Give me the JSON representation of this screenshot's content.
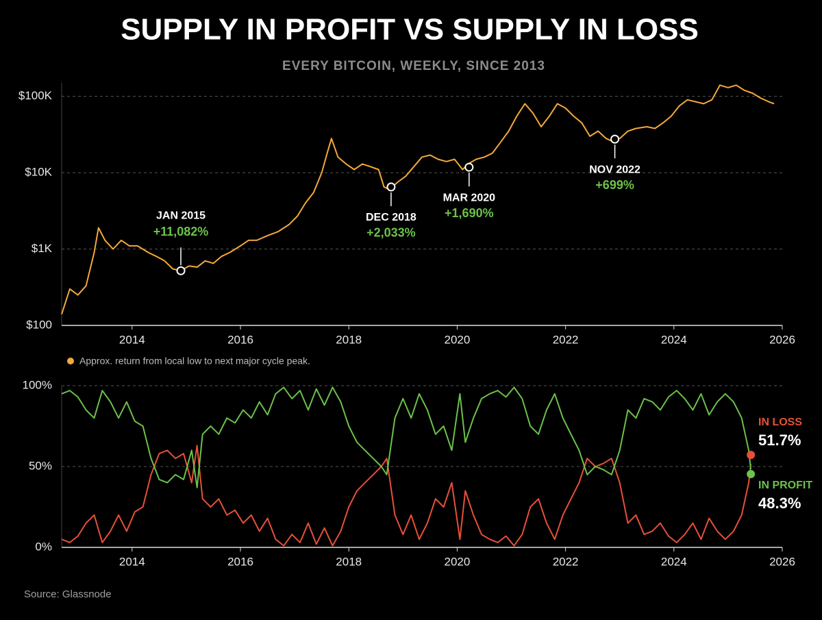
{
  "title": "SUPPLY IN PROFIT VS SUPPLY IN LOSS",
  "subtitle": "EVERY BITCOIN, WEEKLY, SINCE 2013",
  "source": "Source: Glassnode",
  "chart_data": [
    {
      "type": "line",
      "log_scale": true,
      "grid": true,
      "x": [
        2012.7,
        2012.85,
        2013.0,
        2013.15,
        2013.3,
        2013.38,
        2013.5,
        2013.65,
        2013.8,
        2013.95,
        2014.1,
        2014.3,
        2014.45,
        2014.6,
        2014.75,
        2014.9,
        2015.05,
        2015.2,
        2015.35,
        2015.5,
        2015.65,
        2015.8,
        2016.0,
        2016.15,
        2016.3,
        2016.5,
        2016.7,
        2016.9,
        2017.05,
        2017.2,
        2017.35,
        2017.5,
        2017.6,
        2017.68,
        2017.8,
        2017.95,
        2018.1,
        2018.25,
        2018.4,
        2018.55,
        2018.65,
        2018.75,
        2018.9,
        2019.05,
        2019.2,
        2019.35,
        2019.5,
        2019.65,
        2019.8,
        2019.95,
        2020.1,
        2020.2,
        2020.35,
        2020.5,
        2020.65,
        2020.8,
        2020.95,
        2021.1,
        2021.25,
        2021.4,
        2021.55,
        2021.7,
        2021.85,
        2022.0,
        2022.15,
        2022.3,
        2022.45,
        2022.6,
        2022.75,
        2022.85,
        2023.0,
        2023.15,
        2023.3,
        2023.5,
        2023.65,
        2023.8,
        2023.95,
        2024.1,
        2024.25,
        2024.4,
        2024.55,
        2024.7,
        2024.85,
        2025.0,
        2025.15,
        2025.3,
        2025.45,
        2025.6,
        2025.75,
        2025.85
      ],
      "series": [
        {
          "color": "#f4a93b",
          "values": [
            140,
            300,
            250,
            330,
            900,
            1900,
            1300,
            1000,
            1300,
            1100,
            1100,
            900,
            800,
            700,
            550,
            520,
            600,
            580,
            700,
            650,
            800,
            900,
            1100,
            1300,
            1300,
            1500,
            1700,
            2100,
            2700,
            4000,
            5500,
            10000,
            18000,
            28000,
            16000,
            13000,
            11000,
            13000,
            12000,
            11000,
            6500,
            6000,
            7500,
            9000,
            12000,
            16000,
            17000,
            15000,
            14000,
            15000,
            11000,
            13000,
            15000,
            16000,
            18000,
            25000,
            35000,
            55000,
            80000,
            60000,
            40000,
            55000,
            80000,
            70000,
            55000,
            45000,
            30000,
            35000,
            28000,
            26000,
            28000,
            35000,
            38000,
            40000,
            38000,
            45000,
            55000,
            75000,
            90000,
            85000,
            80000,
            90000,
            140000,
            130000,
            140000,
            120000,
            110000,
            95000,
            85000,
            80000
          ]
        }
      ],
      "xlim": [
        2012.7,
        2026
      ],
      "xticks": [
        2014,
        2016,
        2018,
        2020,
        2022,
        2024,
        2026
      ],
      "ylim": [
        100,
        150000
      ],
      "yticks": [
        {
          "value": 100,
          "label": "$100"
        },
        {
          "value": 1000,
          "label": "$1K"
        },
        {
          "value": 10000,
          "label": "$10K"
        },
        {
          "value": 100000,
          "label": "$100K"
        }
      ],
      "annotations": [
        {
          "x": 2014.9,
          "y": 520,
          "label": "JAN 2015",
          "return": "+11,082%",
          "placement": "above"
        },
        {
          "x": 2018.78,
          "y": 6500,
          "label": "DEC 2018",
          "return": "+2,033%",
          "placement": "below"
        },
        {
          "x": 2020.22,
          "y": 11800,
          "label": "MAR 2020",
          "return": "+1,690%",
          "placement": "below"
        },
        {
          "x": 2022.91,
          "y": 27500,
          "label": "NOV 2022",
          "return": "+699%",
          "placement": "below"
        }
      ],
      "note": "Approx. return from local low to next major cycle peak.",
      "note_color": "#f4a93b"
    },
    {
      "type": "line",
      "grid": true,
      "x": [
        2012.7,
        2012.85,
        2013.0,
        2013.15,
        2013.3,
        2013.45,
        2013.6,
        2013.75,
        2013.9,
        2014.05,
        2014.2,
        2014.35,
        2014.5,
        2014.65,
        2014.8,
        2014.95,
        2015.1,
        2015.2,
        2015.3,
        2015.45,
        2015.6,
        2015.75,
        2015.9,
        2016.05,
        2016.2,
        2016.35,
        2016.5,
        2016.65,
        2016.8,
        2016.95,
        2017.1,
        2017.25,
        2017.4,
        2017.55,
        2017.7,
        2017.85,
        2018.0,
        2018.15,
        2018.3,
        2018.45,
        2018.6,
        2018.7,
        2018.85,
        2019.0,
        2019.15,
        2019.3,
        2019.45,
        2019.6,
        2019.75,
        2019.9,
        2020.05,
        2020.15,
        2020.3,
        2020.45,
        2020.6,
        2020.75,
        2020.9,
        2021.05,
        2021.2,
        2021.35,
        2021.5,
        2021.65,
        2021.8,
        2021.95,
        2022.1,
        2022.25,
        2022.4,
        2022.55,
        2022.7,
        2022.85,
        2023.0,
        2023.15,
        2023.3,
        2023.45,
        2023.6,
        2023.75,
        2023.9,
        2024.05,
        2024.2,
        2024.35,
        2024.5,
        2024.65,
        2024.8,
        2024.95,
        2025.1,
        2025.25,
        2025.38,
        2025.42
      ],
      "series": [
        {
          "name": "IN LOSS",
          "color": "#e8503a",
          "end_label": "51.7%",
          "values": [
            5,
            3,
            7,
            15,
            20,
            3,
            10,
            20,
            10,
            22,
            25,
            45,
            58,
            60,
            55,
            58,
            40,
            63,
            30,
            25,
            30,
            20,
            23,
            15,
            20,
            10,
            18,
            5,
            1,
            8,
            3,
            15,
            2,
            12,
            1,
            10,
            25,
            35,
            40,
            45,
            50,
            55,
            20,
            8,
            20,
            5,
            15,
            30,
            25,
            40,
            5,
            35,
            20,
            8,
            5,
            3,
            7,
            1,
            8,
            25,
            30,
            15,
            5,
            20,
            30,
            40,
            55,
            50,
            52,
            55,
            40,
            15,
            20,
            8,
            10,
            15,
            7,
            3,
            8,
            15,
            5,
            18,
            10,
            5,
            10,
            20,
            40,
            51.7
          ]
        },
        {
          "name": "IN PROFIT",
          "color": "#6cc24a",
          "end_label": "48.3%",
          "values": [
            95,
            97,
            93,
            85,
            80,
            97,
            90,
            80,
            90,
            78,
            75,
            55,
            42,
            40,
            45,
            42,
            60,
            37,
            70,
            75,
            70,
            80,
            77,
            85,
            80,
            90,
            82,
            95,
            99,
            92,
            97,
            85,
            98,
            88,
            99,
            90,
            75,
            65,
            60,
            55,
            50,
            45,
            80,
            92,
            80,
            95,
            85,
            70,
            75,
            60,
            95,
            65,
            80,
            92,
            95,
            97,
            93,
            99,
            92,
            75,
            70,
            85,
            95,
            80,
            70,
            60,
            45,
            50,
            48,
            45,
            60,
            85,
            80,
            92,
            90,
            85,
            93,
            97,
            92,
            85,
            95,
            82,
            90,
            95,
            90,
            80,
            60,
            48.3
          ]
        }
      ],
      "xlim": [
        2012.7,
        2026
      ],
      "xticks": [
        2014,
        2016,
        2018,
        2020,
        2022,
        2024,
        2026
      ],
      "ylim": [
        0,
        100
      ],
      "yticks": [
        {
          "value": 0,
          "label": "0%"
        },
        {
          "value": 50,
          "label": "50%"
        },
        {
          "value": 100,
          "label": "100%"
        }
      ]
    }
  ]
}
